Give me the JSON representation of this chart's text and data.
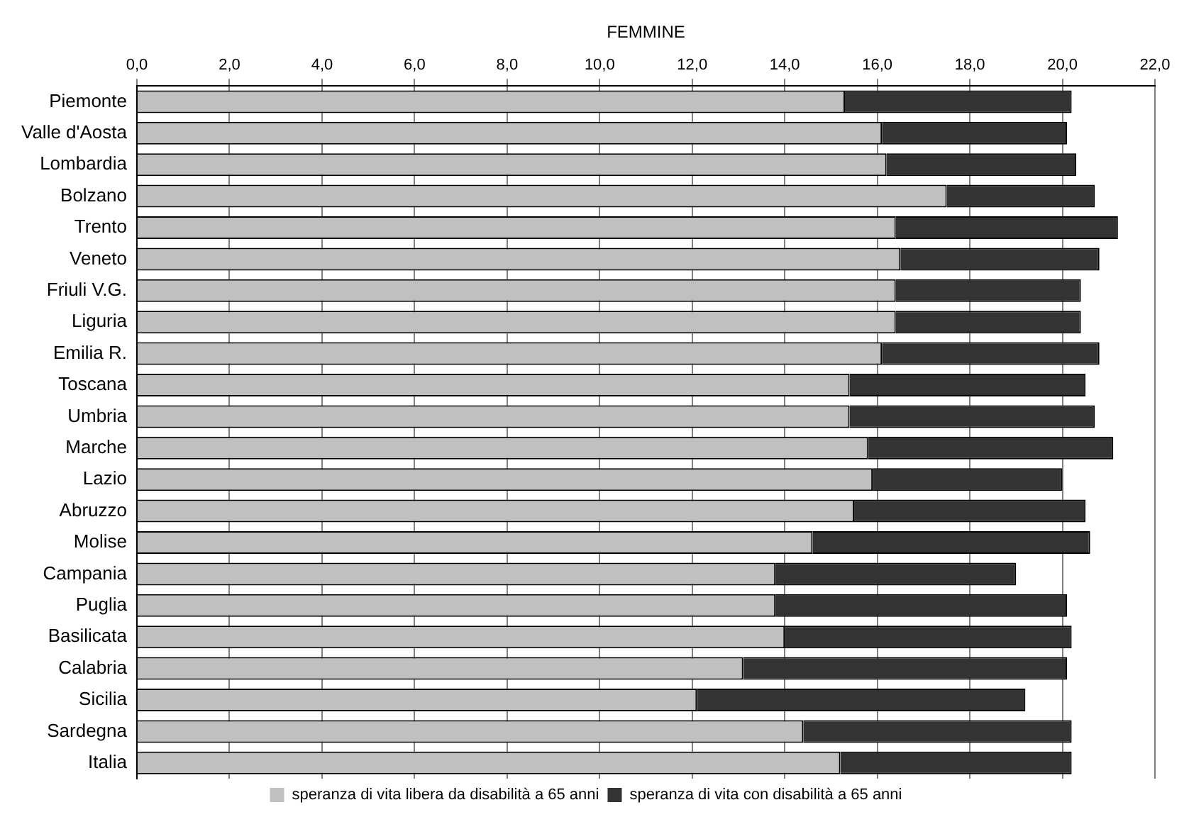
{
  "chart_data": {
    "type": "bar",
    "orientation": "horizontal",
    "stacked": true,
    "title": "FEMMINE",
    "categories": [
      "Piemonte",
      "Valle d'Aosta",
      "Lombardia",
      "Bolzano",
      "Trento",
      "Veneto",
      "Friuli V.G.",
      "Liguria",
      "Emilia R.",
      "Toscana",
      "Umbria",
      "Marche",
      "Lazio",
      "Abruzzo",
      "Molise",
      "Campania",
      "Puglia",
      "Basilicata",
      "Calabria",
      "Sicilia",
      "Sardegna",
      "Italia"
    ],
    "series": [
      {
        "name": "speranza di vita libera da disabilità a 65 anni",
        "color": "#c0c0c0",
        "values": [
          15.3,
          16.1,
          16.2,
          17.5,
          16.4,
          16.5,
          16.4,
          16.4,
          16.1,
          15.4,
          15.4,
          15.8,
          15.9,
          15.5,
          14.6,
          13.8,
          13.8,
          14.0,
          13.1,
          12.1,
          14.4,
          15.2
        ]
      },
      {
        "name": "speranza di vita con disabilità a 65 anni",
        "color": "#333333",
        "values": [
          4.9,
          4.0,
          4.1,
          3.2,
          4.8,
          4.3,
          4.0,
          4.0,
          4.7,
          5.1,
          5.3,
          5.3,
          4.1,
          5.0,
          6.0,
          5.2,
          6.3,
          6.2,
          7.0,
          7.1,
          5.8,
          5.0
        ]
      }
    ],
    "xlim": [
      0,
      22
    ],
    "xticks": [
      {
        "value": 0,
        "label": "0,0"
      },
      {
        "value": 2,
        "label": "2,0"
      },
      {
        "value": 4,
        "label": "4,0"
      },
      {
        "value": 6,
        "label": "6,0"
      },
      {
        "value": 8,
        "label": "8,0"
      },
      {
        "value": 10,
        "label": "10,0"
      },
      {
        "value": 12,
        "label": "12,0"
      },
      {
        "value": 14,
        "label": "14,0"
      },
      {
        "value": 16,
        "label": "16,0"
      },
      {
        "value": 18,
        "label": "18,0"
      },
      {
        "value": 20,
        "label": "20,0"
      },
      {
        "value": 22,
        "label": "22,0"
      }
    ],
    "grid": "x",
    "legend": "bottom"
  }
}
